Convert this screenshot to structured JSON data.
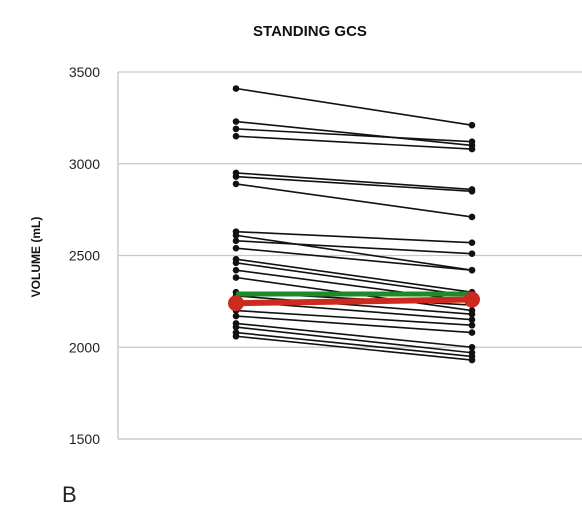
{
  "chart_data": {
    "type": "line",
    "title": "STANDING GCS",
    "ylabel": "VOLUME (mL)",
    "xlabel": "",
    "yticks": [
      1500,
      2000,
      2500,
      3000,
      3500
    ],
    "ylim": [
      1500,
      3500
    ],
    "grid": true,
    "series": [
      {
        "values": [
          3410,
          3210
        ]
      },
      {
        "values": [
          3230,
          3100
        ]
      },
      {
        "values": [
          3190,
          3120
        ]
      },
      {
        "values": [
          3150,
          3080
        ]
      },
      {
        "values": [
          2950,
          2860
        ]
      },
      {
        "values": [
          2930,
          2850
        ]
      },
      {
        "values": [
          2890,
          2710
        ]
      },
      {
        "values": [
          2630,
          2570
        ]
      },
      {
        "values": [
          2610,
          2420
        ]
      },
      {
        "values": [
          2580,
          2510
        ]
      },
      {
        "values": [
          2540,
          2420
        ]
      },
      {
        "values": [
          2480,
          2300
        ]
      },
      {
        "values": [
          2460,
          2280
        ]
      },
      {
        "values": [
          2420,
          2250
        ]
      },
      {
        "values": [
          2380,
          2200
        ]
      },
      {
        "values": [
          2300,
          2230
        ]
      },
      {
        "values": [
          2280,
          2180
        ]
      },
      {
        "values": [
          2250,
          2150
        ]
      },
      {
        "values": [
          2200,
          2120
        ]
      },
      {
        "values": [
          2170,
          2080
        ]
      },
      {
        "values": [
          2130,
          2000
        ]
      },
      {
        "values": [
          2110,
          1970
        ]
      },
      {
        "values": [
          2080,
          1950
        ]
      },
      {
        "values": [
          2060,
          1930
        ]
      }
    ],
    "mean_green": {
      "values": [
        2290,
        2290
      ],
      "color": "#1f8a2a"
    },
    "mean_red": {
      "values": [
        2240,
        2260
      ],
      "color": "#cc2a1e"
    },
    "panel_label": "B",
    "colors": {
      "line": "#111111",
      "grid": "#c8c8c8",
      "axis": "#bfbfbf"
    }
  }
}
